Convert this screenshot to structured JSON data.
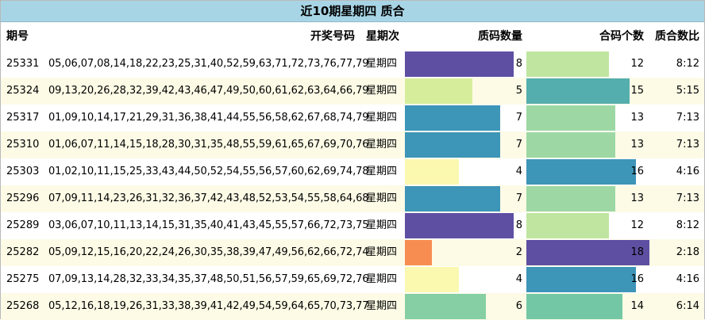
{
  "title": "近10期星期四 质合",
  "headers": {
    "issue": "期号",
    "numbers": "开奖号码",
    "weekday": "星期次",
    "prime_count": "质码数量",
    "composite_count": "合码个数",
    "ratio": "质合数比"
  },
  "rows": [
    {
      "issue": "25331",
      "numbers": "05,06,07,08,14,18,22,23,25,31,40,52,59,63,71,72,73,76,77,79",
      "weekday": "星期四",
      "prime": "8",
      "composite": "12",
      "ratio": "8:12",
      "prime_color": "#5e4fa2",
      "composite_color": "#bfe5a0"
    },
    {
      "issue": "25324",
      "numbers": "09,13,20,26,28,32,39,42,43,46,47,49,50,60,61,62,63,64,66,79",
      "weekday": "星期四",
      "prime": "5",
      "composite": "15",
      "ratio": "5:15",
      "prime_color": "#d6ee9b",
      "composite_color": "#54aead"
    },
    {
      "issue": "25317",
      "numbers": "01,09,10,14,17,21,29,31,36,38,41,44,55,56,58,62,67,68,74,79",
      "weekday": "星期四",
      "prime": "7",
      "composite": "13",
      "ratio": "7:13",
      "prime_color": "#3d95b8",
      "composite_color": "#9dd8a4"
    },
    {
      "issue": "25310",
      "numbers": "01,06,07,11,14,15,18,28,30,31,35,48,55,59,61,65,67,69,70,76",
      "weekday": "星期四",
      "prime": "7",
      "composite": "13",
      "ratio": "7:13",
      "prime_color": "#3d95b8",
      "composite_color": "#9dd8a4"
    },
    {
      "issue": "25303",
      "numbers": "01,02,10,11,15,25,33,43,44,50,52,54,55,56,57,60,62,69,74,78",
      "weekday": "星期四",
      "prime": "4",
      "composite": "16",
      "ratio": "4:16",
      "prime_color": "#fbf8b0",
      "composite_color": "#3d95b8"
    },
    {
      "issue": "25296",
      "numbers": "07,09,11,14,23,26,31,32,36,37,42,43,48,52,53,54,55,58,64,68",
      "weekday": "星期四",
      "prime": "7",
      "composite": "13",
      "ratio": "7:13",
      "prime_color": "#3d95b8",
      "composite_color": "#9dd8a4"
    },
    {
      "issue": "25289",
      "numbers": "03,06,07,10,11,13,14,15,31,35,40,41,43,45,55,57,66,72,73,75",
      "weekday": "星期四",
      "prime": "8",
      "composite": "12",
      "ratio": "8:12",
      "prime_color": "#5e4fa2",
      "composite_color": "#bfe5a0"
    },
    {
      "issue": "25282",
      "numbers": "05,09,12,15,16,20,22,24,26,30,35,38,39,47,49,56,62,66,72,74",
      "weekday": "星期四",
      "prime": "2",
      "composite": "18",
      "ratio": "2:18",
      "prime_color": "#f88d52",
      "composite_color": "#5e4fa2"
    },
    {
      "issue": "25275",
      "numbers": "07,09,13,14,28,32,33,34,35,37,48,50,51,56,57,59,65,69,72,76",
      "weekday": "星期四",
      "prime": "4",
      "composite": "16",
      "ratio": "4:16",
      "prime_color": "#fbf8b0",
      "composite_color": "#3d95b8"
    },
    {
      "issue": "25268",
      "numbers": "05,12,16,18,19,26,31,33,38,39,41,42,49,54,59,64,65,70,73,77",
      "weekday": "星期四",
      "prime": "6",
      "composite": "14",
      "ratio": "6:14",
      "prime_color": "#86cfa5",
      "composite_color": "#74c7a5"
    }
  ]
}
